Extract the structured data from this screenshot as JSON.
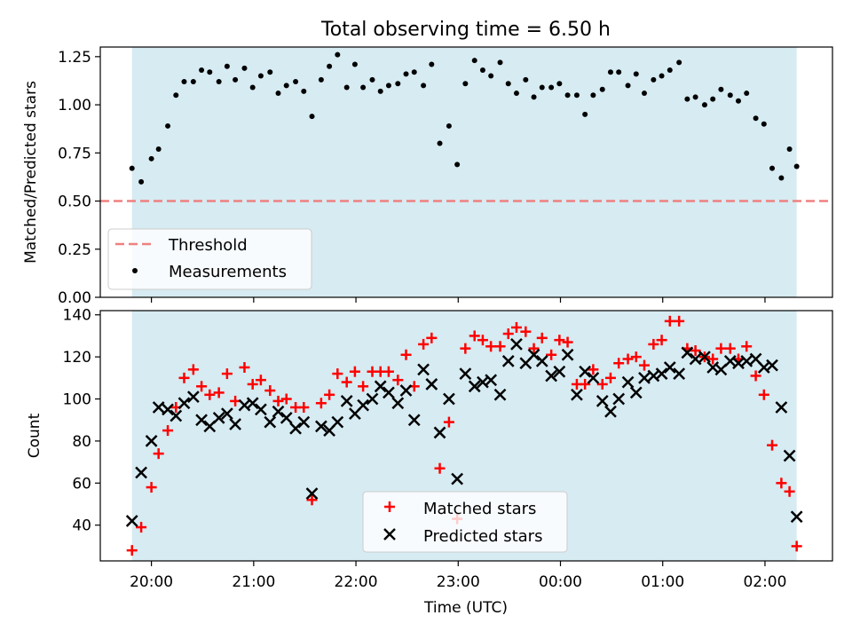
{
  "title": "Total observing time = 6.50 h",
  "colors": {
    "shade": "#add8e6",
    "threshold": "#f08080",
    "matched": "#ff0000",
    "predicted": "#000000",
    "measure": "#000000"
  },
  "chart_data": [
    {
      "type": "scatter",
      "ylabel": "Matched/Predicted stars",
      "ylim": [
        0,
        1.3
      ],
      "yticks": [
        "0.00",
        "0.25",
        "0.50",
        "0.75",
        "1.00",
        "1.25"
      ],
      "xlim": [
        -0.5,
        6.66
      ],
      "xticks": [
        0,
        1,
        2,
        3,
        4,
        5,
        6
      ],
      "shade_x": [
        -0.19,
        6.31
      ],
      "threshold": 0.5,
      "legend": {
        "position": "lower-left",
        "entries": [
          "Threshold",
          "Measurements"
        ]
      },
      "series": [
        {
          "name": "Measurements",
          "x": [
            -0.19,
            -0.1,
            0.0,
            0.07,
            0.16,
            0.24,
            0.32,
            0.41,
            0.49,
            0.57,
            0.66,
            0.74,
            0.82,
            0.91,
            0.99,
            1.07,
            1.16,
            1.24,
            1.32,
            1.41,
            1.49,
            1.57,
            1.66,
            1.74,
            1.82,
            1.91,
            1.99,
            2.07,
            2.16,
            2.24,
            2.32,
            2.41,
            2.49,
            2.57,
            2.66,
            2.74,
            2.82,
            2.91,
            2.99,
            3.07,
            3.16,
            3.24,
            3.32,
            3.41,
            3.49,
            3.57,
            3.66,
            3.74,
            3.82,
            3.91,
            3.99,
            4.07,
            4.16,
            4.24,
            4.32,
            4.41,
            4.49,
            4.57,
            4.66,
            4.74,
            4.82,
            4.91,
            4.99,
            5.07,
            5.16,
            5.24,
            5.32,
            5.41,
            5.49,
            5.57,
            5.66,
            5.74,
            5.82,
            5.91,
            5.99,
            6.07,
            6.16,
            6.24,
            6.31
          ],
          "y": [
            0.67,
            0.6,
            0.72,
            0.77,
            0.89,
            1.05,
            1.12,
            1.12,
            1.18,
            1.17,
            1.12,
            1.2,
            1.13,
            1.19,
            1.09,
            1.15,
            1.17,
            1.06,
            1.1,
            1.12,
            1.07,
            0.94,
            1.13,
            1.2,
            1.26,
            1.09,
            1.21,
            1.09,
            1.13,
            1.07,
            1.1,
            1.11,
            1.16,
            1.17,
            1.1,
            1.21,
            0.8,
            0.89,
            0.69,
            1.11,
            1.23,
            1.18,
            1.15,
            1.22,
            1.11,
            1.06,
            1.13,
            1.04,
            1.09,
            1.09,
            1.11,
            1.05,
            1.05,
            0.95,
            1.05,
            1.08,
            1.17,
            1.17,
            1.1,
            1.16,
            1.06,
            1.13,
            1.15,
            1.18,
            1.22,
            1.03,
            1.04,
            1.0,
            1.03,
            1.08,
            1.05,
            1.02,
            1.06,
            0.93,
            0.9,
            0.67,
            0.62,
            0.77,
            0.68
          ]
        }
      ]
    },
    {
      "type": "scatter",
      "xlabel": "Time (UTC)",
      "ylabel": "Count",
      "ylim": [
        23,
        142
      ],
      "yticks": [
        40,
        60,
        80,
        100,
        120,
        140
      ],
      "xlim": [
        -0.5,
        6.66
      ],
      "xticks": [
        0,
        1,
        2,
        3,
        4,
        5,
        6
      ],
      "xticklabels": [
        "20:00",
        "21:00",
        "22:00",
        "23:00",
        "00:00",
        "01:00",
        "02:00"
      ],
      "shade_x": [
        -0.19,
        6.31
      ],
      "legend": {
        "position": "lower-center",
        "entries": [
          "Matched stars",
          "Predicted stars"
        ]
      },
      "series": [
        {
          "name": "Matched stars",
          "marker": "plus",
          "x": [
            -0.19,
            -0.1,
            0.0,
            0.07,
            0.16,
            0.24,
            0.32,
            0.41,
            0.49,
            0.57,
            0.66,
            0.74,
            0.82,
            0.91,
            0.99,
            1.07,
            1.16,
            1.24,
            1.32,
            1.41,
            1.49,
            1.57,
            1.66,
            1.74,
            1.82,
            1.91,
            1.99,
            2.07,
            2.16,
            2.24,
            2.32,
            2.41,
            2.49,
            2.57,
            2.66,
            2.74,
            2.82,
            2.91,
            2.99,
            3.07,
            3.16,
            3.24,
            3.32,
            3.41,
            3.49,
            3.57,
            3.66,
            3.74,
            3.82,
            3.91,
            3.99,
            4.07,
            4.16,
            4.24,
            4.32,
            4.41,
            4.49,
            4.57,
            4.66,
            4.74,
            4.82,
            4.91,
            4.99,
            5.07,
            5.16,
            5.24,
            5.32,
            5.41,
            5.49,
            5.57,
            5.66,
            5.74,
            5.82,
            5.91,
            5.99,
            6.07,
            6.16,
            6.24,
            6.31
          ],
          "y": [
            28,
            39,
            58,
            74,
            85,
            96,
            110,
            114,
            106,
            102,
            103,
            112,
            99,
            115,
            107,
            109,
            104,
            99,
            100,
            96,
            96,
            52,
            98,
            102,
            112,
            108,
            113,
            106,
            113,
            113,
            113,
            109,
            121,
            106,
            126,
            129,
            67,
            89,
            43,
            124,
            130,
            128,
            125,
            125,
            131,
            134,
            132,
            124,
            129,
            121,
            128,
            127,
            107,
            107,
            114,
            107,
            110,
            117,
            119,
            120,
            116,
            126,
            128,
            137,
            137,
            124,
            123,
            120,
            119,
            124,
            124,
            119,
            125,
            111,
            102,
            78,
            60,
            56,
            30
          ]
        },
        {
          "name": "Predicted stars",
          "marker": "x",
          "x": [
            -0.19,
            -0.1,
            0.0,
            0.07,
            0.16,
            0.24,
            0.32,
            0.41,
            0.49,
            0.57,
            0.66,
            0.74,
            0.82,
            0.91,
            0.99,
            1.07,
            1.16,
            1.24,
            1.32,
            1.41,
            1.49,
            1.57,
            1.66,
            1.74,
            1.82,
            1.91,
            1.99,
            2.07,
            2.16,
            2.24,
            2.32,
            2.41,
            2.49,
            2.57,
            2.66,
            2.74,
            2.82,
            2.91,
            2.99,
            3.07,
            3.16,
            3.24,
            3.32,
            3.41,
            3.49,
            3.57,
            3.66,
            3.74,
            3.82,
            3.91,
            3.99,
            4.07,
            4.16,
            4.24,
            4.32,
            4.41,
            4.49,
            4.57,
            4.66,
            4.74,
            4.82,
            4.91,
            4.99,
            5.07,
            5.16,
            5.24,
            5.32,
            5.41,
            5.49,
            5.57,
            5.66,
            5.74,
            5.82,
            5.91,
            5.99,
            6.07,
            6.16,
            6.24,
            6.31
          ],
          "y": [
            42,
            65,
            80,
            96,
            95,
            92,
            98,
            101,
            90,
            87,
            91,
            93,
            88,
            97,
            98,
            95,
            89,
            94,
            91,
            86,
            89,
            55,
            87,
            85,
            89,
            99,
            93,
            97,
            100,
            106,
            103,
            98,
            104,
            90,
            114,
            107,
            84,
            100,
            62,
            112,
            106,
            108,
            109,
            102,
            118,
            126,
            117,
            121,
            118,
            111,
            113,
            121,
            102,
            113,
            110,
            99,
            94,
            100,
            108,
            103,
            110,
            111,
            112,
            115,
            112,
            122,
            119,
            120,
            115,
            114,
            118,
            117,
            118,
            119,
            115,
            116,
            96,
            73,
            44
          ]
        }
      ]
    }
  ]
}
